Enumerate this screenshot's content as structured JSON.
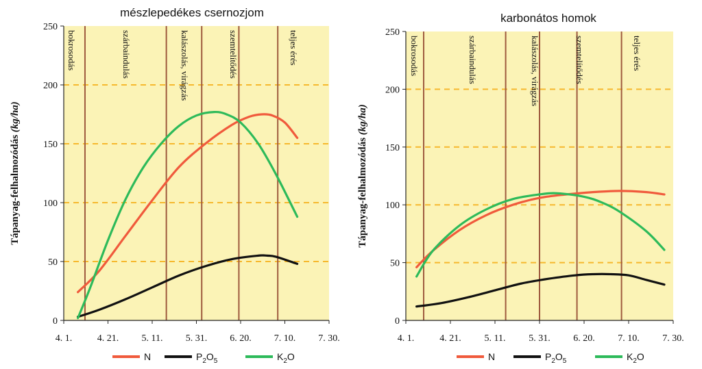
{
  "figure": {
    "y_label": "Tápanyag-felhalmozódás",
    "y_unit": "(kg/ha)",
    "legend": [
      {
        "name": "N",
        "sub": "",
        "name2": "",
        "sub2": "",
        "color": "#f05a3c"
      },
      {
        "name": "P",
        "sub": "2",
        "name2": "O",
        "sub2": "5",
        "color": "#111111"
      },
      {
        "name": "K",
        "sub": "2",
        "name2": "O",
        "sub2": "",
        "color": "#2dba5a"
      }
    ],
    "plot_bg": "#fbf3b6",
    "stage_line_color": "#9e5a3e",
    "grid_color": "#f6b82d"
  },
  "chart_data": [
    {
      "type": "line",
      "title": "mészlepedékes csernozjom",
      "x_ticks": [
        "4. 1.",
        "4. 21.",
        "5. 11.",
        "5. 31.",
        "6. 20.",
        "7. 10.",
        "7. 30."
      ],
      "ylim": [
        0,
        250
      ],
      "y_ticks": [
        "0",
        "50",
        "100",
        "150",
        "200",
        "250"
      ],
      "grid": "dashed horizontal at 50, 100, 150, 200",
      "stages": [
        {
          "label": "bokrosodás",
          "x_day": 12
        },
        {
          "label": "szárbaindulás",
          "x_day": 58
        },
        {
          "label": "kalászolás, virágzás",
          "x_day": 78
        },
        {
          "label": "szemtelítődés",
          "x_day": 99
        },
        {
          "label": "teljes érés",
          "x_day": 121
        }
      ],
      "series": [
        {
          "name": "N",
          "color": "#f05a3c",
          "x_day": [
            8,
            20,
            35,
            50,
            65,
            80,
            95,
            105,
            112,
            118,
            125,
            132
          ],
          "y": [
            24,
            42,
            72,
            102,
            130,
            150,
            166,
            173,
            175,
            174,
            168,
            155
          ]
        },
        {
          "name": "P2O5",
          "color": "#111111",
          "x_day": [
            8,
            20,
            35,
            50,
            65,
            80,
            95,
            110,
            115,
            120,
            132
          ],
          "y": [
            3,
            9,
            18,
            28,
            38,
            46,
            52,
            55,
            55,
            54,
            48
          ]
        },
        {
          "name": "K2O",
          "color": "#2dba5a",
          "x_day": [
            8,
            15,
            25,
            35,
            45,
            55,
            65,
            75,
            85,
            92,
            100,
            110,
            120,
            132
          ],
          "y": [
            2,
            28,
            68,
            103,
            130,
            150,
            165,
            174,
            177,
            175,
            168,
            150,
            124,
            88
          ]
        }
      ]
    },
    {
      "type": "line",
      "title": "karbonátos homok",
      "x_ticks": [
        "4. 1.",
        "4. 21.",
        "5. 11.",
        "5. 31.",
        "6. 20.",
        "7. 10.",
        "7. 30."
      ],
      "ylim": [
        0,
        250
      ],
      "y_ticks": [
        "0",
        "50",
        "100",
        "150",
        "200",
        "250"
      ],
      "grid": "dashed horizontal at 50, 100, 150, 200",
      "stages": [
        {
          "label": "bokrosodás",
          "x_day": 10
        },
        {
          "label": "szárbaindulás",
          "x_day": 56
        },
        {
          "label": "kalászolás, virágzás",
          "x_day": 75
        },
        {
          "label": "szemtelítődés",
          "x_day": 96
        },
        {
          "label": "teljes érés",
          "x_day": 121
        }
      ],
      "series": [
        {
          "name": "N",
          "color": "#f05a3c",
          "x_day": [
            6,
            15,
            30,
            45,
            60,
            75,
            90,
            105,
            120,
            135,
            145
          ],
          "y": [
            46,
            60,
            78,
            91,
            100,
            106,
            109,
            111,
            112,
            111,
            109
          ]
        },
        {
          "name": "P2O5",
          "color": "#111111",
          "x_day": [
            6,
            20,
            35,
            50,
            65,
            80,
            95,
            105,
            115,
            125,
            135,
            145
          ],
          "y": [
            12,
            15,
            20,
            26,
            32,
            36,
            39,
            40,
            40,
            39,
            35,
            31
          ]
        },
        {
          "name": "K2O",
          "color": "#2dba5a",
          "x_day": [
            6,
            15,
            30,
            45,
            60,
            75,
            85,
            100,
            110,
            120,
            135,
            145
          ],
          "y": [
            38,
            60,
            82,
            96,
            105,
            109,
            110,
            107,
            102,
            94,
            77,
            61
          ]
        }
      ]
    }
  ]
}
